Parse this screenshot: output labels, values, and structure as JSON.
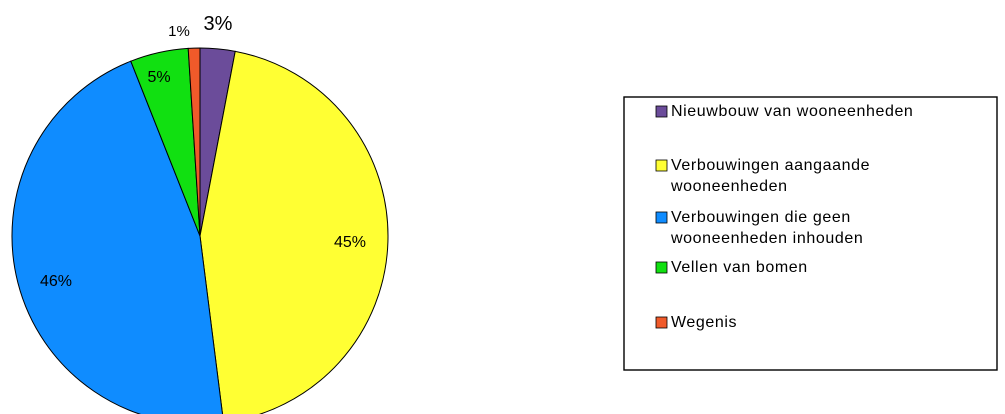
{
  "chart_data": {
    "type": "pie",
    "title": "",
    "slices": [
      {
        "label": "Nieuwbouw van wooneenheden",
        "value": 3,
        "display": "3%",
        "color": "#6b4c9a"
      },
      {
        "label": "Verbouwingen aangaande wooneenheden",
        "value": 45,
        "display": "45%",
        "color": "#ffff33"
      },
      {
        "label": "Verbouwingen die geen wooneenheden inhouden",
        "value": 46,
        "display": "46%",
        "color": "#0f8cff"
      },
      {
        "label": "Vellen van bomen",
        "value": 5,
        "display": "5%",
        "color": "#11e011"
      },
      {
        "label": "Wegenis",
        "value": 1,
        "display": "1%",
        "color": "#f05a2a"
      }
    ],
    "legend": {
      "placement": "right",
      "entries": [
        {
          "lines": [
            "Nieuwbouw van wooneenheden"
          ],
          "color": "#6b4c9a"
        },
        {
          "lines": [
            "Verbouwingen aangaande",
            "wooneenheden"
          ],
          "color": "#ffff33"
        },
        {
          "lines": [
            "Verbouwingen die geen",
            "wooneenheden inhouden"
          ],
          "color": "#0f8cff"
        },
        {
          "lines": [
            "Vellen van bomen"
          ],
          "color": "#11e011"
        },
        {
          "lines": [
            "Wegenis"
          ],
          "color": "#f05a2a"
        }
      ]
    }
  }
}
